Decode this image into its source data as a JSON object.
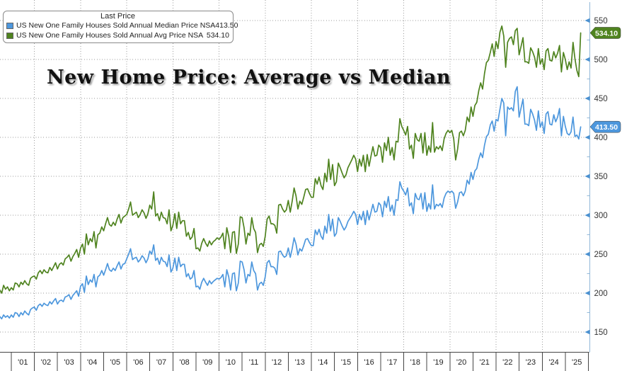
{
  "title": "New Home Price: Average vs Median",
  "legend": {
    "title": "Last Price",
    "items": [
      {
        "label": "US New One Family Houses Sold Annual Median Price NSA",
        "value": "413.50",
        "color": "#4d97dd"
      },
      {
        "label": "US New One Family Houses Sold Annual Avg Price NSA",
        "value": "534.10",
        "color": "#4f831f"
      }
    ]
  },
  "right_axis": {
    "min": 150,
    "max": 550,
    "major_step": 50,
    "minor_step": 25,
    "tick_labels": [
      "150",
      "200",
      "250",
      "300",
      "350",
      "400",
      "450",
      "500",
      "550"
    ],
    "line_color": "#92b8d8",
    "tick_color": "#4a90d0",
    "label_color": "#333333",
    "badges": [
      {
        "value": 534.1,
        "text": "534.10",
        "color": "#4f831f"
      },
      {
        "value": 413.5,
        "text": "413.50",
        "color": "#4d97dd"
      }
    ]
  },
  "x_axis": {
    "labels": [
      "'01",
      "'02",
      "'03",
      "'04",
      "'05",
      "'06",
      "'07",
      "'08",
      "'09",
      "'10",
      "'11",
      "'12",
      "'13",
      "'14",
      "'15",
      "'16",
      "'17",
      "'18",
      "'19",
      "'20",
      "'21",
      "'22",
      "'23",
      "'24",
      "'25"
    ]
  },
  "chart_data": {
    "type": "line",
    "title": "New Home Price: Average vs Median",
    "frequency": "monthly",
    "x_start": "2000-07",
    "x_end": "2025-09",
    "ylim": [
      150,
      550
    ],
    "ytick_step": 50,
    "grid": true,
    "legend_position": "top-left",
    "units": "USD thousands",
    "series": [
      {
        "name": "US New One Family Houses Sold Annual Median Price NSA",
        "color": "#4d97dd",
        "last": 413.5,
        "values": [
          170,
          167,
          172,
          169,
          171,
          168,
          172,
          169,
          175,
          174,
          170,
          175,
          172,
          177,
          174,
          172,
          179,
          181,
          182,
          178,
          184,
          186,
          183,
          187,
          185,
          184,
          189,
          186,
          190,
          193,
          186,
          190,
          191,
          189,
          195,
          196,
          198,
          192,
          197,
          200,
          203,
          196,
          209,
          212,
          201,
          222,
          211,
          217,
          214,
          224,
          208,
          221,
          223,
          229,
          223,
          230,
          238,
          230,
          228,
          232,
          229,
          235,
          240,
          231,
          237,
          238,
          244,
          250,
          257,
          243,
          245,
          246,
          240,
          243,
          248,
          245,
          239,
          244,
          254,
          250,
          262,
          242,
          245,
          237,
          246,
          241,
          240,
          234,
          249,
          227,
          232,
          245,
          229,
          246,
          234,
          237,
          237,
          221,
          225,
          218,
          220,
          229,
          208,
          209,
          205,
          214,
          219,
          214,
          210,
          216,
          212,
          215,
          217,
          219,
          218,
          220,
          224,
          208,
          230,
          221,
          204,
          225,
          226,
          203,
          213,
          241,
          240,
          230,
          213,
          224,
          222,
          240,
          229,
          225,
          204,
          212,
          214,
          210,
          221,
          239,
          242,
          234,
          234,
          232,
          224,
          253,
          254,
          249,
          246,
          248,
          258,
          246,
          257,
          271,
          263,
          249,
          257,
          254,
          261,
          269,
          270,
          265,
          261,
          261,
          281,
          275,
          282,
          273,
          269,
          286,
          277,
          301,
          280,
          295,
          273,
          277,
          297,
          292,
          286,
          281,
          285,
          292,
          296,
          300,
          305,
          301,
          288,
          301,
          294,
          305,
          288,
          306,
          294,
          304,
          314,
          304,
          305,
          316,
          313,
          298,
          318,
          310,
          324,
          305,
          313,
          300,
          320,
          319,
          343,
          335,
          331,
          326,
          335,
          312,
          316,
          302,
          328,
          321,
          320,
          328,
          308,
          329,
          305,
          315,
          308,
          339,
          308,
          314,
          312,
          315,
          310,
          322,
          328,
          331,
          329,
          331,
          328,
          309,
          317,
          329,
          330,
          325,
          331,
          345,
          340,
          355,
          346,
          357,
          360,
          372,
          380,
          374,
          390,
          401,
          404,
          416,
          421,
          408,
          423,
          421,
          436,
          450,
          444,
          402,
          439,
          436,
          438,
          434,
          459,
          465,
          426,
          438,
          449,
          417,
          417,
          415,
          436,
          430,
          422,
          409,
          434,
          413,
          420,
          405,
          430,
          433,
          417,
          416,
          429,
          420,
          426,
          437,
          402,
          427,
          414,
          405,
          403,
          407,
          426,
          401,
          403,
          398,
          413.5
        ]
      },
      {
        "name": "US New One Family Houses Sold Annual Avg Price NSA",
        "color": "#4f831f",
        "last": 534.1,
        "values": [
          204,
          200,
          210,
          205,
          208,
          203,
          207,
          204,
          213,
          212,
          208,
          214,
          211,
          216,
          212,
          210,
          219,
          221,
          222,
          218,
          226,
          229,
          225,
          230,
          227,
          226,
          233,
          229,
          234,
          239,
          231,
          237,
          239,
          236,
          244,
          246,
          249,
          241,
          247,
          251,
          256,
          246,
          258,
          263,
          250,
          276,
          262,
          270,
          266,
          279,
          258,
          275,
          277,
          285,
          280,
          289,
          297,
          288,
          286,
          291,
          287,
          295,
          301,
          290,
          297,
          299,
          301,
          308,
          317,
          300,
          302,
          304,
          297,
          301,
          307,
          303,
          296,
          302,
          313,
          308,
          330,
          299,
          302,
          293,
          304,
          297,
          296,
          289,
          307,
          280,
          287,
          302,
          283,
          304,
          289,
          293,
          293,
          273,
          278,
          269,
          272,
          283,
          257,
          258,
          254,
          264,
          270,
          264,
          260,
          267,
          262,
          266,
          268,
          271,
          269,
          272,
          277,
          257,
          284,
          273,
          252,
          278,
          279,
          251,
          263,
          298,
          297,
          284,
          263,
          277,
          274,
          297,
          283,
          278,
          252,
          262,
          264,
          260,
          273,
          295,
          299,
          289,
          289,
          287,
          277,
          313,
          314,
          308,
          304,
          307,
          319,
          304,
          318,
          335,
          325,
          308,
          318,
          314,
          323,
          333,
          334,
          328,
          323,
          323,
          347,
          340,
          349,
          338,
          333,
          354,
          343,
          372,
          346,
          365,
          338,
          343,
          367,
          361,
          354,
          348,
          352,
          361,
          366,
          371,
          377,
          372,
          356,
          372,
          363,
          377,
          356,
          378,
          363,
          376,
          388,
          376,
          377,
          390,
          387,
          368,
          393,
          383,
          400,
          377,
          387,
          371,
          395,
          394,
          424,
          414,
          409,
          403,
          414,
          385,
          390,
          373,
          405,
          397,
          395,
          405,
          380,
          406,
          377,
          389,
          381,
          419,
          381,
          388,
          385,
          389,
          383,
          398,
          405,
          409,
          406,
          409,
          398,
          371,
          385,
          406,
          408,
          402,
          409,
          426,
          420,
          439,
          427,
          441,
          445,
          460,
          470,
          462,
          482,
          496,
          499,
          509,
          520,
          504,
          523,
          514,
          535,
          543,
          530,
          490,
          522,
          527,
          529,
          519,
          537,
          540,
          506,
          517,
          528,
          497,
          497,
          495,
          515,
          510,
          503,
          490,
          514,
          494,
          501,
          487,
          511,
          514,
          499,
          498,
          510,
          502,
          508,
          518,
          484,
          509,
          500,
          487,
          497,
          489,
          522,
          501,
          486,
          478,
          534.1
        ]
      }
    ]
  },
  "style": {
    "grid_color": "#9a9a9a",
    "bottom_axis_color": "#444444",
    "background": "#ffffff"
  }
}
